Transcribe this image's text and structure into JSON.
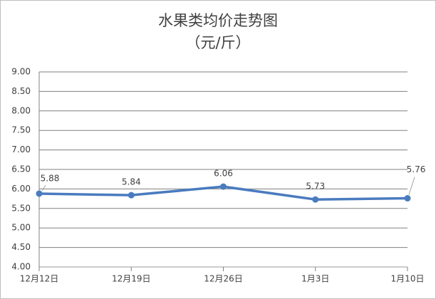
{
  "chart_data": {
    "type": "line",
    "title": "水果类均价走势图",
    "subtitle": "（元/斤）",
    "categories": [
      "12月12日",
      "12月19日",
      "12月26日",
      "1月3日",
      "1月10日"
    ],
    "series": [
      {
        "color": "#4a7bbf",
        "values": [
          5.88,
          5.84,
          6.06,
          5.73,
          5.76
        ]
      }
    ],
    "ylim": [
      4.0,
      9.0
    ],
    "yticks": [
      {
        "value": 4.0,
        "label": "4.00"
      },
      {
        "value": 4.5,
        "label": "4.50"
      },
      {
        "value": 5.0,
        "label": "5.00"
      },
      {
        "value": 5.5,
        "label": "5.50"
      },
      {
        "value": 6.0,
        "label": "6.00"
      },
      {
        "value": 6.5,
        "label": "6.50"
      },
      {
        "value": 7.0,
        "label": "7.00"
      },
      {
        "value": 7.5,
        "label": "7.50"
      },
      {
        "value": 8.0,
        "label": "8.00"
      },
      {
        "value": 8.5,
        "label": "8.50"
      },
      {
        "value": 9.0,
        "label": "9.00"
      }
    ],
    "grid": true
  }
}
